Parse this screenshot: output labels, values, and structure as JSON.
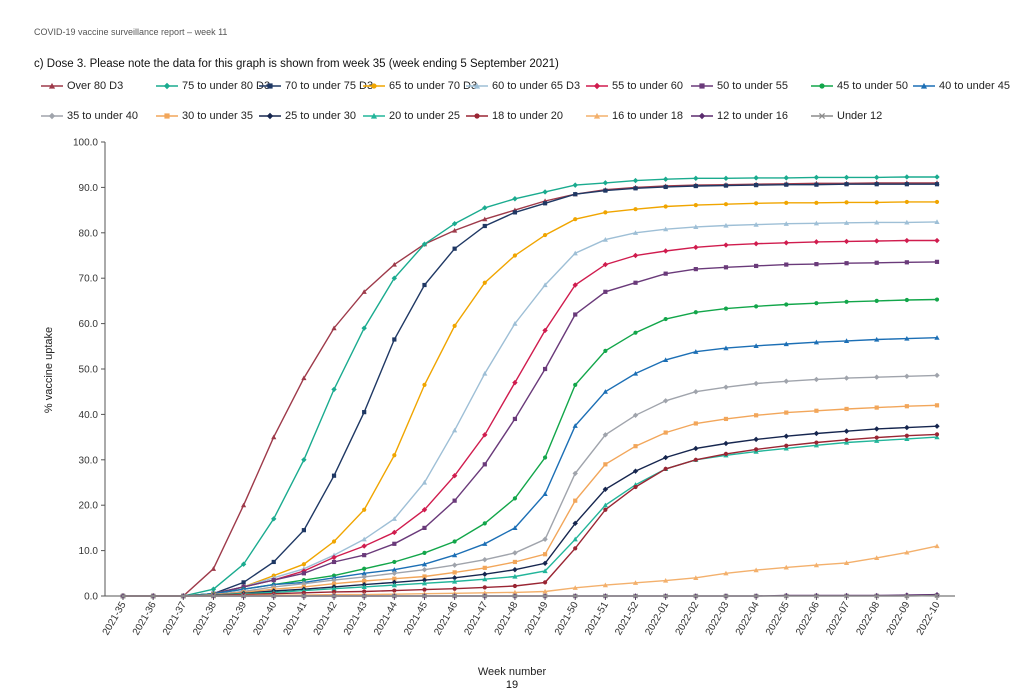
{
  "report_header": "COVID-19 vaccine surveillance report – week 11",
  "caption": "c) Dose 3. Please note the data for this graph is shown from week 35 (week ending 5 September 2021)",
  "page_number": "19",
  "chart_data": {
    "type": "line",
    "title": "",
    "xlabel": "Week number",
    "ylabel": "% vaccine uptake",
    "ylim": [
      0,
      100
    ],
    "yticks": [
      0,
      10,
      20,
      30,
      40,
      50,
      60,
      70,
      80,
      90,
      100
    ],
    "ytick_labels": [
      "0.0",
      "10.0",
      "20.0",
      "30.0",
      "40.0",
      "50.0",
      "60.0",
      "70.0",
      "80.0",
      "90.0",
      "100.0"
    ],
    "grid": false,
    "legend_position": "top",
    "categories": [
      "2021-35",
      "2021-36",
      "2021-37",
      "2021-38",
      "2021-39",
      "2021-40",
      "2021-41",
      "2021-42",
      "2021-43",
      "2021-44",
      "2021-45",
      "2021-46",
      "2021-47",
      "2021-48",
      "2021-49",
      "2021-50",
      "2021-51",
      "2021-52",
      "2022-01",
      "2022-02",
      "2022-03",
      "2022-04",
      "2022-05",
      "2022-06",
      "2022-07",
      "2022-08",
      "2022-09",
      "2022-10"
    ],
    "series": [
      {
        "name": "Over 80 D3",
        "color": "#9e3a4a",
        "marker": "triangle",
        "values": [
          0,
          0,
          0,
          6,
          20,
          35,
          48,
          59,
          67,
          73,
          77.5,
          80.5,
          83,
          85,
          87,
          88.5,
          89.5,
          90,
          90.3,
          90.5,
          90.6,
          90.7,
          90.8,
          90.9,
          90.9,
          91,
          91,
          91
        ]
      },
      {
        "name": "75 to under 80 D3",
        "color": "#1aab8f",
        "marker": "diamond",
        "values": [
          0,
          0,
          0,
          1.5,
          7,
          17,
          30,
          45.5,
          59,
          70,
          77.5,
          82,
          85.5,
          87.5,
          89,
          90.5,
          91,
          91.5,
          91.8,
          92,
          92,
          92.1,
          92.1,
          92.2,
          92.2,
          92.2,
          92.3,
          92.3
        ]
      },
      {
        "name": "70 to under 75 D3",
        "color": "#1f3864",
        "marker": "square",
        "values": [
          0,
          0,
          0,
          0.5,
          3,
          7.5,
          14.5,
          26.5,
          40.5,
          56.5,
          68.5,
          76.5,
          81.5,
          84.5,
          86.5,
          88.5,
          89.3,
          89.8,
          90.1,
          90.3,
          90.4,
          90.5,
          90.6,
          90.6,
          90.7,
          90.7,
          90.7,
          90.7
        ]
      },
      {
        "name": "65 to under 70 D3",
        "color": "#f0a500",
        "marker": "circle",
        "values": [
          0,
          0,
          0,
          0.5,
          2,
          4.5,
          7,
          12,
          19,
          31,
          46.5,
          59.5,
          69,
          75,
          79.5,
          83,
          84.5,
          85.2,
          85.8,
          86.1,
          86.3,
          86.5,
          86.6,
          86.6,
          86.7,
          86.7,
          86.8,
          86.8
        ]
      },
      {
        "name": "60 to under 65 D3",
        "color": "#9ebfd6",
        "marker": "triangle",
        "values": [
          0,
          0,
          0,
          0.5,
          2,
          4,
          6,
          9,
          12.5,
          17,
          25,
          36.5,
          49,
          60,
          68.5,
          75.5,
          78.5,
          80,
          80.8,
          81.3,
          81.6,
          81.8,
          82,
          82.1,
          82.2,
          82.3,
          82.3,
          82.4
        ]
      },
      {
        "name": "55 to under 60",
        "color": "#d01c4e",
        "marker": "diamond",
        "values": [
          0,
          0,
          0,
          0.5,
          2,
          3.5,
          5.5,
          8.5,
          11,
          14,
          19,
          26.5,
          35.5,
          47,
          58.5,
          68.5,
          73,
          75,
          76,
          76.8,
          77.3,
          77.6,
          77.8,
          78,
          78.1,
          78.2,
          78.3,
          78.3
        ]
      },
      {
        "name": "50 to under 55",
        "color": "#6a3a7a",
        "marker": "square",
        "values": [
          0,
          0,
          0,
          0.5,
          2,
          3.5,
          5,
          7.5,
          9,
          11.5,
          15,
          21,
          29,
          39,
          50,
          62,
          67,
          69,
          71,
          72,
          72.4,
          72.7,
          73,
          73.1,
          73.3,
          73.4,
          73.5,
          73.6
        ]
      },
      {
        "name": "45 to under 50",
        "color": "#12a64a",
        "marker": "circle",
        "values": [
          0,
          0,
          0,
          0.5,
          1.5,
          2.5,
          3.5,
          4.5,
          6,
          7.5,
          9.5,
          12,
          16,
          21.5,
          30.5,
          46.5,
          54,
          58,
          61,
          62.5,
          63.3,
          63.8,
          64.2,
          64.5,
          64.8,
          65,
          65.2,
          65.3
        ]
      },
      {
        "name": "40 to under 45",
        "color": "#1c6fb5",
        "marker": "triangle",
        "values": [
          0,
          0,
          0,
          0.5,
          1.5,
          2.5,
          3,
          4,
          5,
          5.8,
          7,
          9,
          11.5,
          15,
          22.5,
          37.5,
          45,
          49,
          52,
          53.8,
          54.6,
          55.1,
          55.5,
          55.9,
          56.2,
          56.5,
          56.7,
          56.9
        ]
      },
      {
        "name": "35 to under 40",
        "color": "#a0a4ac",
        "marker": "diamond",
        "values": [
          0,
          0,
          0,
          0.3,
          1,
          2,
          2.7,
          3.5,
          4.2,
          5,
          5.8,
          6.8,
          8,
          9.5,
          12.5,
          27,
          35.5,
          39.8,
          43,
          45,
          46,
          46.8,
          47.3,
          47.7,
          48,
          48.2,
          48.4,
          48.6
        ]
      },
      {
        "name": "30 to under 35",
        "color": "#f2a65a",
        "marker": "square",
        "values": [
          0,
          0,
          0,
          0.3,
          0.8,
          1.5,
          2,
          2.7,
          3.3,
          3.8,
          4.3,
          5.2,
          6.2,
          7.5,
          9.2,
          21,
          29,
          33,
          36,
          38,
          39,
          39.8,
          40.4,
          40.8,
          41.2,
          41.5,
          41.8,
          42
        ]
      },
      {
        "name": "25 to under 30",
        "color": "#16264f",
        "marker": "diamond",
        "values": [
          0,
          0,
          0,
          0.2,
          0.6,
          1.1,
          1.5,
          2,
          2.5,
          3,
          3.5,
          4,
          4.8,
          5.8,
          7.2,
          16,
          23.5,
          27.5,
          30.5,
          32.5,
          33.6,
          34.5,
          35.2,
          35.8,
          36.3,
          36.8,
          37.1,
          37.4
        ]
      },
      {
        "name": "20 to under 25",
        "color": "#22b59a",
        "marker": "triangle",
        "values": [
          0,
          0,
          0,
          0.2,
          0.5,
          0.8,
          1.2,
          1.6,
          2,
          2.4,
          2.8,
          3.2,
          3.7,
          4.3,
          5.5,
          12.5,
          20,
          24.5,
          28,
          30,
          31,
          31.8,
          32.5,
          33.2,
          33.8,
          34.2,
          34.6,
          35
        ]
      },
      {
        "name": "18 to under 20",
        "color": "#9a2533",
        "marker": "circle",
        "values": [
          0,
          0,
          0,
          0.1,
          0.3,
          0.5,
          0.7,
          0.9,
          1,
          1.2,
          1.4,
          1.6,
          1.9,
          2.2,
          3,
          10.5,
          19,
          24,
          28,
          30,
          31.3,
          32.3,
          33.1,
          33.8,
          34.4,
          34.9,
          35.3,
          35.6
        ]
      },
      {
        "name": "16 to under 18",
        "color": "#f3b06c",
        "marker": "triangle",
        "values": [
          0,
          0,
          0,
          0,
          0.1,
          0.2,
          0.2,
          0.3,
          0.3,
          0.4,
          0.5,
          0.6,
          0.7,
          0.8,
          1,
          1.8,
          2.4,
          2.9,
          3.4,
          4,
          5,
          5.7,
          6.3,
          6.8,
          7.3,
          8.4,
          9.6,
          11
        ]
      },
      {
        "name": "12 to under 16",
        "color": "#5b2c6f",
        "marker": "diamond",
        "values": [
          0,
          0,
          0,
          0,
          0,
          0,
          0,
          0,
          0,
          0,
          0,
          0,
          0,
          0,
          0,
          0,
          0,
          0,
          0,
          0,
          0,
          0,
          0.1,
          0.1,
          0.1,
          0.1,
          0.2,
          0.3
        ]
      },
      {
        "name": "Under 12",
        "color": "#8c8c8c",
        "marker": "cross",
        "values": [
          0,
          0,
          0,
          0,
          0,
          0,
          0,
          0,
          0,
          0,
          0,
          0,
          0,
          0,
          0,
          0,
          0,
          0,
          0,
          0,
          0,
          0,
          0,
          0,
          0,
          0,
          0,
          0.1
        ]
      }
    ]
  }
}
